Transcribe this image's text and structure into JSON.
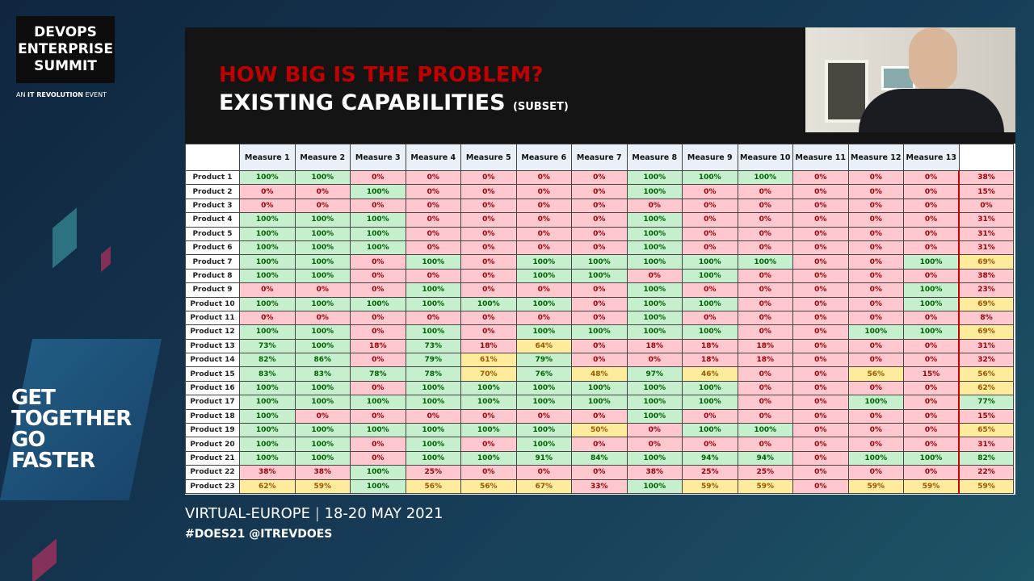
{
  "branding": {
    "logo_lines": [
      "DEVOPS",
      "ENTERPRISE",
      "SUMMIT"
    ],
    "tagline_prefix": "AN",
    "tagline_brand": "IT REVOLUTION",
    "tagline_suffix": "EVENT",
    "slogan_lines": [
      "GET",
      "TOGETHER",
      "GO",
      "FASTER"
    ]
  },
  "event": {
    "location": "VIRTUAL-EUROPE",
    "dates": "18-20 MAY 2021",
    "hashtags": "#DOES21 @ITREVDOES"
  },
  "slide": {
    "title": "HOW BIG IS THE PROBLEM?",
    "subtitle": "EXISTING CAPABILITIES",
    "subtitle_note": "(SUBSET)"
  },
  "table": {
    "palette": {
      "g": "#c6efce",
      "r": "#ffc7ce",
      "y": "#ffeb9c"
    },
    "text_colors": {
      "g": "#006100",
      "r": "#9c0006",
      "y": "#9c5700"
    },
    "columns": [
      "Measure 1",
      "Measure 2",
      "Measure 3",
      "Measure 4",
      "Measure 5",
      "Measure 6",
      "Measure 7",
      "Measure 8",
      "Measure 9",
      "Measure 10",
      "Measure 11",
      "Measure 12",
      "Measure 13"
    ],
    "rows": [
      {
        "label": "Product 1",
        "cells": [
          "100%",
          "100%",
          "0%",
          "0%",
          "0%",
          "0%",
          "0%",
          "100%",
          "100%",
          "100%",
          "0%",
          "0%",
          "0%",
          "38%"
        ],
        "colors": "ggrrrrrgggrrrr"
      },
      {
        "label": "Product 2",
        "cells": [
          "0%",
          "0%",
          "100%",
          "0%",
          "0%",
          "0%",
          "0%",
          "100%",
          "0%",
          "0%",
          "0%",
          "0%",
          "0%",
          "15%"
        ],
        "colors": "rrgrrrrgrrrrrr"
      },
      {
        "label": "Product 3",
        "cells": [
          "0%",
          "0%",
          "0%",
          "0%",
          "0%",
          "0%",
          "0%",
          "0%",
          "0%",
          "0%",
          "0%",
          "0%",
          "0%",
          "0%"
        ],
        "colors": "rrrrrrrrrrrrrr"
      },
      {
        "label": "Product 4",
        "cells": [
          "100%",
          "100%",
          "100%",
          "0%",
          "0%",
          "0%",
          "0%",
          "100%",
          "0%",
          "0%",
          "0%",
          "0%",
          "0%",
          "31%"
        ],
        "colors": "gggrrrrgrrrrrr"
      },
      {
        "label": "Product 5",
        "cells": [
          "100%",
          "100%",
          "100%",
          "0%",
          "0%",
          "0%",
          "0%",
          "100%",
          "0%",
          "0%",
          "0%",
          "0%",
          "0%",
          "31%"
        ],
        "colors": "gggrrrrgrrrrrr"
      },
      {
        "label": "Product 6",
        "cells": [
          "100%",
          "100%",
          "100%",
          "0%",
          "0%",
          "0%",
          "0%",
          "100%",
          "0%",
          "0%",
          "0%",
          "0%",
          "0%",
          "31%"
        ],
        "colors": "gggrrrrgrrrrrr"
      },
      {
        "label": "Product 7",
        "cells": [
          "100%",
          "100%",
          "0%",
          "100%",
          "0%",
          "100%",
          "100%",
          "100%",
          "100%",
          "100%",
          "0%",
          "0%",
          "100%",
          "69%"
        ],
        "colors": "ggrgrgggggrrgy"
      },
      {
        "label": "Product 8",
        "cells": [
          "100%",
          "100%",
          "0%",
          "0%",
          "0%",
          "100%",
          "100%",
          "0%",
          "100%",
          "0%",
          "0%",
          "0%",
          "0%",
          "38%"
        ],
        "colors": "ggrrrggrgrrrrr"
      },
      {
        "label": "Product 9",
        "cells": [
          "0%",
          "0%",
          "0%",
          "100%",
          "0%",
          "0%",
          "0%",
          "100%",
          "0%",
          "0%",
          "0%",
          "0%",
          "100%",
          "23%"
        ],
        "colors": "rrrgrrrgrrrrgr"
      },
      {
        "label": "Product 10",
        "cells": [
          "100%",
          "100%",
          "100%",
          "100%",
          "100%",
          "100%",
          "0%",
          "100%",
          "100%",
          "0%",
          "0%",
          "0%",
          "100%",
          "69%"
        ],
        "colors": "ggggggrggrrrgy"
      },
      {
        "label": "Product 11",
        "cells": [
          "0%",
          "0%",
          "0%",
          "0%",
          "0%",
          "0%",
          "0%",
          "100%",
          "0%",
          "0%",
          "0%",
          "0%",
          "0%",
          "8%"
        ],
        "colors": "rrrrrrrgrrrrrr"
      },
      {
        "label": "Product 12",
        "cells": [
          "100%",
          "100%",
          "0%",
          "100%",
          "0%",
          "100%",
          "100%",
          "100%",
          "100%",
          "0%",
          "0%",
          "100%",
          "100%",
          "69%"
        ],
        "colors": "ggrgrggggrrggy"
      },
      {
        "label": "Product 13",
        "cells": [
          "73%",
          "100%",
          "18%",
          "73%",
          "18%",
          "64%",
          "0%",
          "18%",
          "18%",
          "18%",
          "0%",
          "0%",
          "0%",
          "31%"
        ],
        "colors": "ggrgryrrrrrrrr"
      },
      {
        "label": "Product 14",
        "cells": [
          "82%",
          "86%",
          "0%",
          "79%",
          "61%",
          "79%",
          "0%",
          "0%",
          "18%",
          "18%",
          "0%",
          "0%",
          "0%",
          "32%"
        ],
        "colors": "ggrgygrrrrrrrr"
      },
      {
        "label": "Product 15",
        "cells": [
          "83%",
          "83%",
          "78%",
          "78%",
          "70%",
          "76%",
          "48%",
          "97%",
          "46%",
          "0%",
          "0%",
          "56%",
          "15%",
          "56%"
        ],
        "colors": "ggggygygyrryry"
      },
      {
        "label": "Product 16",
        "cells": [
          "100%",
          "100%",
          "0%",
          "100%",
          "100%",
          "100%",
          "100%",
          "100%",
          "100%",
          "0%",
          "0%",
          "0%",
          "0%",
          "62%"
        ],
        "colors": "ggrggggggrrrry"
      },
      {
        "label": "Product 17",
        "cells": [
          "100%",
          "100%",
          "100%",
          "100%",
          "100%",
          "100%",
          "100%",
          "100%",
          "100%",
          "0%",
          "0%",
          "100%",
          "0%",
          "77%"
        ],
        "colors": "gggggggggrrgrg"
      },
      {
        "label": "Product 18",
        "cells": [
          "100%",
          "0%",
          "0%",
          "0%",
          "0%",
          "0%",
          "0%",
          "100%",
          "0%",
          "0%",
          "0%",
          "0%",
          "0%",
          "15%"
        ],
        "colors": "grrrrrrgrrrrrr"
      },
      {
        "label": "Product 19",
        "cells": [
          "100%",
          "100%",
          "100%",
          "100%",
          "100%",
          "100%",
          "50%",
          "0%",
          "100%",
          "100%",
          "0%",
          "0%",
          "0%",
          "65%"
        ],
        "colors": "ggggggyrggrrry"
      },
      {
        "label": "Product 20",
        "cells": [
          "100%",
          "100%",
          "0%",
          "100%",
          "0%",
          "100%",
          "0%",
          "0%",
          "0%",
          "0%",
          "0%",
          "0%",
          "0%",
          "31%"
        ],
        "colors": "ggrgrgrrrrrrrr"
      },
      {
        "label": "Product 21",
        "cells": [
          "100%",
          "100%",
          "0%",
          "100%",
          "100%",
          "91%",
          "84%",
          "100%",
          "94%",
          "94%",
          "0%",
          "100%",
          "100%",
          "82%"
        ],
        "colors": "ggrgggggggrggg"
      },
      {
        "label": "Product 22",
        "cells": [
          "38%",
          "38%",
          "100%",
          "25%",
          "0%",
          "0%",
          "0%",
          "38%",
          "25%",
          "25%",
          "0%",
          "0%",
          "0%",
          "22%"
        ],
        "colors": "rrgrrrrrrrrrrr"
      },
      {
        "label": "Product 23",
        "cells": [
          "62%",
          "59%",
          "100%",
          "56%",
          "56%",
          "67%",
          "33%",
          "100%",
          "59%",
          "59%",
          "0%",
          "59%",
          "59%",
          "59%"
        ],
        "colors": "yygyyyrgyyryyy"
      }
    ]
  }
}
